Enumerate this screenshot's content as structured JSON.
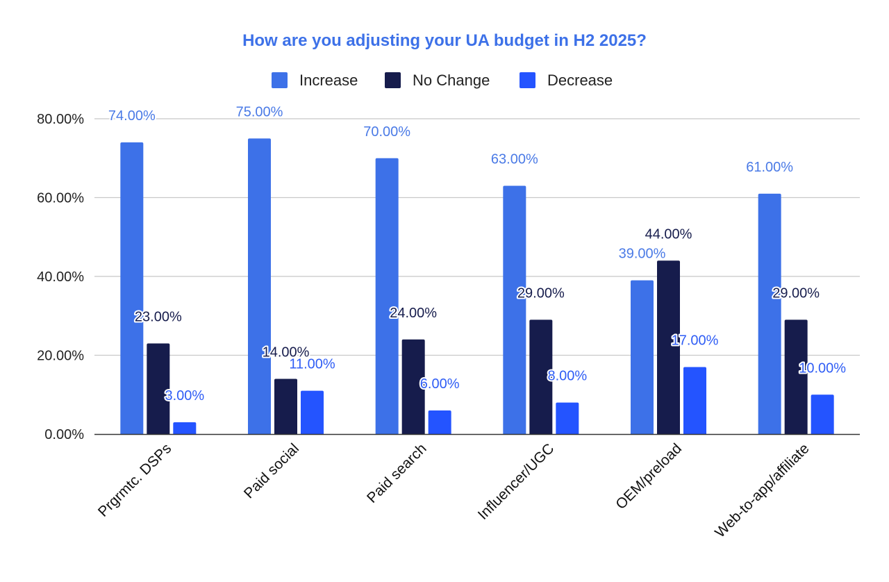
{
  "chart_data": {
    "type": "bar",
    "title": "How are you adjusting your UA budget in H2 2025?",
    "categories": [
      "Prgrmtc. DSPs",
      "Paid social",
      "Paid search",
      "Influencer/UGC",
      "OEM/preload",
      "Web-to-app/affiliate"
    ],
    "series": [
      {
        "name": "Increase",
        "color": "#3d71e8",
        "label_color": "#4a7ae6",
        "values": [
          74,
          75,
          70,
          63,
          39,
          61
        ],
        "labels": [
          "74.00%",
          "75.00%",
          "70.00%",
          "63.00%",
          "39.00%",
          "61.00%"
        ]
      },
      {
        "name": "No Change",
        "color": "#161c4c",
        "label_color": "#161c4c",
        "values": [
          23,
          14,
          24,
          29,
          44,
          29
        ],
        "labels": [
          "23.00%",
          "14.00%",
          "24.00%",
          "29.00%",
          "44.00%",
          "29.00%"
        ]
      },
      {
        "name": "Decrease",
        "color": "#2454ff",
        "label_color": "#2f5df5",
        "values": [
          3,
          11,
          6,
          8,
          17,
          10
        ],
        "labels": [
          "3.00%",
          "11.00%",
          "6.00%",
          "8.00%",
          "17.00%",
          "10.00%"
        ]
      }
    ],
    "yticks": [
      0,
      20,
      40,
      60,
      80
    ],
    "ytick_labels": [
      "0.00%",
      "20.00%",
      "40.00%",
      "60.00%",
      "80.00%"
    ],
    "ylim": [
      0,
      80
    ],
    "xlabel": "",
    "ylabel": "",
    "grid": true,
    "legend_position": "top-center",
    "title_color": "#3d71e8"
  }
}
